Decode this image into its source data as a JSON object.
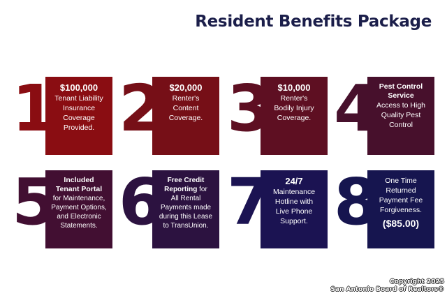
{
  "title": "Resident Benefits Package",
  "colors": {
    "title": "#1b1e4a",
    "row1": [
      "#8a0d12",
      "#760f17",
      "#5e0f22",
      "#47102c"
    ],
    "row2": [
      "#420f32",
      "#2c1240",
      "#1b1352",
      "#16154f"
    ]
  },
  "benefits": [
    {
      "number": "1",
      "heading": "$100,000",
      "body": "Tenant Liability Insurance Coverage Provided."
    },
    {
      "number": "2",
      "heading": "$20,000",
      "body": "Renter's Content Coverage."
    },
    {
      "number": "3",
      "heading": "$10,000",
      "body": "Renter's Bodily Injury Coverage."
    },
    {
      "number": "4",
      "heading": "Pest Control Service",
      "body": "Access to High Quality Pest Control"
    },
    {
      "number": "5",
      "heading": "Included Tenant Portal",
      "body": "for Maintenance, Payment Options, and Electronic Statements."
    },
    {
      "number": "6",
      "heading": "Free Credit Reporting",
      "inline": " for",
      "body": "All Rental Payments made during this Lease to TransUnion."
    },
    {
      "number": "7",
      "heading": "24/7",
      "body": "Maintenance Hotline with Live Phone Support."
    },
    {
      "number": "8",
      "pre": "One Time Returned Payment Fee Forgiveness.",
      "heading": "($85.00)"
    }
  ],
  "footer": {
    "line1": "Copyright 2025",
    "line2": "San Antonio Board of Realtors®"
  }
}
